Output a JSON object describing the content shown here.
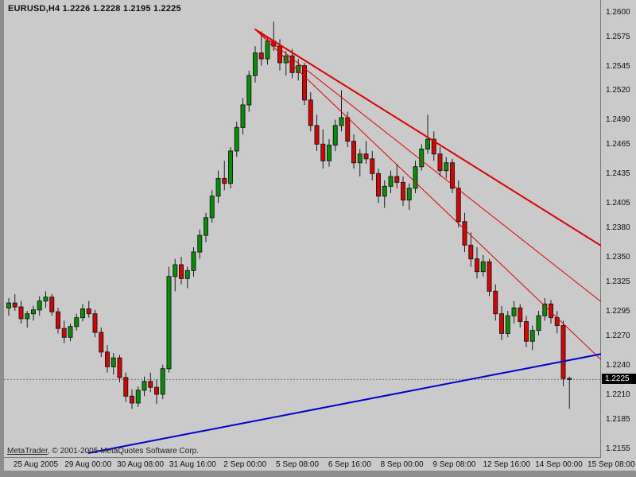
{
  "window": {
    "title": "EURUSD,H4  1.2226 1.2228 1.2195 1.2225",
    "copyright_brand": "MetaTrader",
    "copyright_rest": ", © 2001-2005 MetaQuotes Software Corp."
  },
  "chart_data": {
    "type": "candlestick",
    "symbol": "EURUSD",
    "timeframe": "H4",
    "current_bar_ohlc": {
      "open": "1.2226",
      "high": "1.2228",
      "low": "1.2195",
      "close": "1.2225"
    },
    "current_price": 1.2225,
    "current_price_label": "1.2225",
    "ylim": [
      1.2145,
      1.2612
    ],
    "grid": false,
    "colors": {
      "background": "#cacaca",
      "up": "#009500",
      "down": "#e00000",
      "wick": "#1c1c1c",
      "price_line": "#707070",
      "trend_red": "#e00000",
      "trend_blue": "#0000cd"
    },
    "layout": {
      "offset": 6,
      "spacing": 7.75,
      "xtick_start": 40,
      "xtick_step": 65.8
    },
    "y_ticks": [
      "1.2600",
      "1.2575",
      "1.2545",
      "1.2520",
      "1.2490",
      "1.2465",
      "1.2435",
      "1.2405",
      "1.2380",
      "1.2350",
      "1.2325",
      "1.2295",
      "1.2270",
      "1.2240",
      "1.2210",
      "1.2185",
      "1.2155"
    ],
    "x_ticks": [
      "25 Aug 2005",
      "29 Aug 00:00",
      "30 Aug 08:00",
      "31 Aug 16:00",
      "2 Sep 00:00",
      "5 Sep 08:00",
      "6 Sep 16:00",
      "8 Sep 00:00",
      "9 Sep 08:00",
      "12 Sep 16:00",
      "14 Sep 00:00",
      "15 Sep 08:00"
    ],
    "trendlines": [
      {
        "name": "descending-major",
        "color": "#e00000",
        "width": 2,
        "from": [
          40,
          1.2582
        ],
        "to": [
          97,
          1.2358
        ]
      },
      {
        "name": "descending-minor-1",
        "color": "#e00000",
        "width": 1,
        "from": [
          40,
          1.2582
        ],
        "to": [
          97,
          1.23
        ]
      },
      {
        "name": "descending-minor-2",
        "color": "#e00000",
        "width": 1,
        "from": [
          40,
          1.2582
        ],
        "to": [
          97,
          1.224
        ]
      },
      {
        "name": "ascending-support",
        "color": "#0000cd",
        "width": 2,
        "from": [
          13,
          1.215
        ],
        "to": [
          97,
          1.2252
        ]
      }
    ],
    "candles": [
      [
        1.2298,
        1.2308,
        1.229,
        1.2303
      ],
      [
        1.2303,
        1.2312,
        1.2295,
        1.2299
      ],
      [
        1.2299,
        1.2305,
        1.2282,
        1.2287
      ],
      [
        1.2287,
        1.2295,
        1.2278,
        1.2292
      ],
      [
        1.2292,
        1.23,
        1.2285,
        1.2296
      ],
      [
        1.2296,
        1.231,
        1.229,
        1.2305
      ],
      [
        1.2305,
        1.2315,
        1.2298,
        1.2309
      ],
      [
        1.2309,
        1.2312,
        1.229,
        1.2294
      ],
      [
        1.2294,
        1.2298,
        1.2272,
        1.2277
      ],
      [
        1.2277,
        1.2285,
        1.2262,
        1.2268
      ],
      [
        1.2268,
        1.2282,
        1.2264,
        1.2279
      ],
      [
        1.2279,
        1.2292,
        1.2275,
        1.2288
      ],
      [
        1.2288,
        1.2302,
        1.2284,
        1.2297
      ],
      [
        1.2297,
        1.2305,
        1.2288,
        1.2292
      ],
      [
        1.2292,
        1.2296,
        1.2268,
        1.2273
      ],
      [
        1.2273,
        1.2278,
        1.2248,
        1.2253
      ],
      [
        1.2253,
        1.226,
        1.2232,
        1.2238
      ],
      [
        1.2238,
        1.2252,
        1.223,
        1.2247
      ],
      [
        1.2247,
        1.225,
        1.2222,
        1.2227
      ],
      [
        1.2227,
        1.2232,
        1.2202,
        1.2208
      ],
      [
        1.2208,
        1.2215,
        1.2195,
        1.2201
      ],
      [
        1.2201,
        1.2218,
        1.2197,
        1.2214
      ],
      [
        1.2214,
        1.2228,
        1.2208,
        1.2223
      ],
      [
        1.2223,
        1.2232,
        1.2212,
        1.2217
      ],
      [
        1.2217,
        1.2225,
        1.22,
        1.221
      ],
      [
        1.221,
        1.224,
        1.2205,
        1.2236
      ],
      [
        1.2236,
        1.234,
        1.2232,
        1.233
      ],
      [
        1.233,
        1.2348,
        1.2315,
        1.2342
      ],
      [
        1.2342,
        1.235,
        1.2322,
        1.2328
      ],
      [
        1.2328,
        1.234,
        1.2318,
        1.2336
      ],
      [
        1.2336,
        1.236,
        1.233,
        1.2355
      ],
      [
        1.2355,
        1.2378,
        1.2348,
        1.2372
      ],
      [
        1.2372,
        1.2395,
        1.2365,
        1.239
      ],
      [
        1.239,
        1.2418,
        1.2385,
        1.2412
      ],
      [
        1.2412,
        1.2438,
        1.2405,
        1.243
      ],
      [
        1.243,
        1.2448,
        1.2418,
        1.2425
      ],
      [
        1.2425,
        1.2462,
        1.242,
        1.2458
      ],
      [
        1.2458,
        1.2488,
        1.2452,
        1.2482
      ],
      [
        1.2482,
        1.2512,
        1.2475,
        1.2505
      ],
      [
        1.2505,
        1.254,
        1.2498,
        1.2535
      ],
      [
        1.2535,
        1.2565,
        1.2528,
        1.2558
      ],
      [
        1.2558,
        1.258,
        1.2545,
        1.2552
      ],
      [
        1.2552,
        1.2575,
        1.2546,
        1.257
      ],
      [
        1.257,
        1.259,
        1.256,
        1.2565
      ],
      [
        1.2565,
        1.2572,
        1.254,
        1.2548
      ],
      [
        1.2548,
        1.256,
        1.2535,
        1.2555
      ],
      [
        1.2555,
        1.2562,
        1.2532,
        1.2538
      ],
      [
        1.2538,
        1.2552,
        1.253,
        1.2545
      ],
      [
        1.2545,
        1.2548,
        1.2505,
        1.251
      ],
      [
        1.251,
        1.2518,
        1.2478,
        1.2484
      ],
      [
        1.2484,
        1.2495,
        1.2458,
        1.2465
      ],
      [
        1.2465,
        1.248,
        1.244,
        1.2448
      ],
      [
        1.2448,
        1.247,
        1.2442,
        1.2464
      ],
      [
        1.2464,
        1.249,
        1.2458,
        1.2484
      ],
      [
        1.2484,
        1.252,
        1.2478,
        1.2492
      ],
      [
        1.2492,
        1.2498,
        1.2462,
        1.2468
      ],
      [
        1.2468,
        1.2475,
        1.244,
        1.2446
      ],
      [
        1.2446,
        1.246,
        1.2432,
        1.2455
      ],
      [
        1.2455,
        1.2468,
        1.2445,
        1.245
      ],
      [
        1.245,
        1.2458,
        1.2428,
        1.2435
      ],
      [
        1.2435,
        1.244,
        1.2405,
        1.2412
      ],
      [
        1.2412,
        1.2428,
        1.24,
        1.2422
      ],
      [
        1.2422,
        1.2438,
        1.2415,
        1.2432
      ],
      [
        1.2432,
        1.2445,
        1.242,
        1.2426
      ],
      [
        1.2426,
        1.2432,
        1.2402,
        1.2408
      ],
      [
        1.2408,
        1.2425,
        1.2398,
        1.242
      ],
      [
        1.242,
        1.2448,
        1.2415,
        1.2442
      ],
      [
        1.2442,
        1.2465,
        1.2438,
        1.246
      ],
      [
        1.246,
        1.2495,
        1.2455,
        1.247
      ],
      [
        1.247,
        1.2478,
        1.2448,
        1.2455
      ],
      [
        1.2455,
        1.2462,
        1.2432,
        1.2438
      ],
      [
        1.2438,
        1.2452,
        1.243,
        1.2446
      ],
      [
        1.2446,
        1.245,
        1.2415,
        1.242
      ],
      [
        1.242,
        1.2428,
        1.238,
        1.2386
      ],
      [
        1.2386,
        1.2395,
        1.2355,
        1.2362
      ],
      [
        1.2362,
        1.2375,
        1.234,
        1.2348
      ],
      [
        1.2348,
        1.236,
        1.2328,
        1.2335
      ],
      [
        1.2335,
        1.2352,
        1.233,
        1.2345
      ],
      [
        1.2345,
        1.2348,
        1.231,
        1.2315
      ],
      [
        1.2315,
        1.2322,
        1.2285,
        1.2292
      ],
      [
        1.2292,
        1.23,
        1.2265,
        1.2272
      ],
      [
        1.2272,
        1.2295,
        1.2268,
        1.229
      ],
      [
        1.229,
        1.2305,
        1.2282,
        1.2298
      ],
      [
        1.2298,
        1.2302,
        1.2278,
        1.2284
      ],
      [
        1.2284,
        1.229,
        1.2258,
        1.2264
      ],
      [
        1.2264,
        1.228,
        1.2255,
        1.2275
      ],
      [
        1.2275,
        1.2295,
        1.227,
        1.229
      ],
      [
        1.229,
        1.2308,
        1.2285,
        1.2302
      ],
      [
        1.2302,
        1.2306,
        1.2282,
        1.2288
      ],
      [
        1.2288,
        1.2295,
        1.2272,
        1.228
      ],
      [
        1.228,
        1.2285,
        1.2218,
        1.2226
      ],
      [
        1.2226,
        1.2228,
        1.2195,
        1.2225
      ]
    ]
  }
}
